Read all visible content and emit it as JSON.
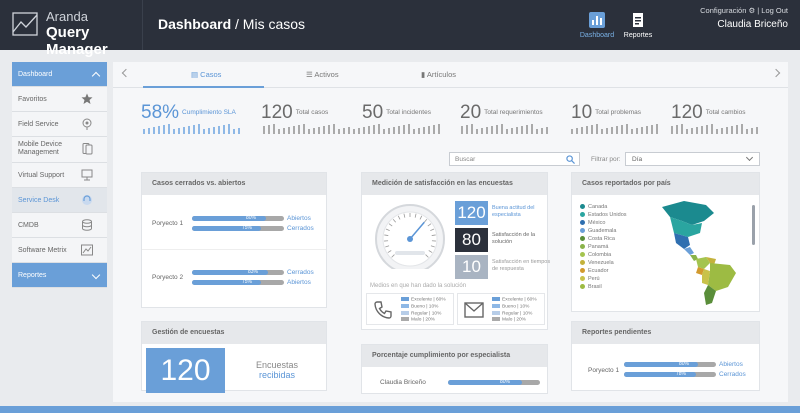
{
  "brand": {
    "line1": "Aranda",
    "line2": "Query Manager"
  },
  "header": {
    "title_bold": "Dashboard",
    "title_rest": " / Mis casos",
    "config": "Configuración ⚙ | Log Out",
    "user": "Claudia Briceño"
  },
  "nav": [
    {
      "label": "Dashboard"
    },
    {
      "label": "Reportes"
    }
  ],
  "sidebar": {
    "items": [
      {
        "label": "Dashboard"
      },
      {
        "label": "Favoritos"
      },
      {
        "label": "Field Service"
      },
      {
        "label": "Mobile Device Management"
      },
      {
        "label": "Virtual Support"
      },
      {
        "label": "Service Desk"
      },
      {
        "label": "CMDB"
      },
      {
        "label": "Software Metrix"
      },
      {
        "label": "Reportes"
      }
    ]
  },
  "tabs": [
    {
      "label": "Casos"
    },
    {
      "label": "Activos"
    },
    {
      "label": "Artículos"
    }
  ],
  "kpis": [
    {
      "num": "58%",
      "label": "Cumplimiento SLA"
    },
    {
      "num": "120",
      "label": "Total casos"
    },
    {
      "num": "50",
      "label": "Total incidentes"
    },
    {
      "num": "20",
      "label": "Total requerimientos"
    },
    {
      "num": "10",
      "label": "Total problemas"
    },
    {
      "num": "120",
      "label": "Total cambios"
    }
  ],
  "search": {
    "placeholder": "Buscar"
  },
  "filter": {
    "label": "Filtrar por:",
    "value": "Día"
  },
  "closed_open": {
    "title": "Casos cerrados vs. abiertos",
    "rows": [
      {
        "label": "Poryecto 1",
        "open": 80,
        "closed": 75,
        "open_txt": "80%",
        "closed_txt": "75%",
        "leg_open": "Abiertos",
        "leg_closed": "Cerrados"
      },
      {
        "label": "Poryecto 2",
        "open": 83,
        "closed": 75,
        "open_txt": "83%",
        "closed_txt": "75%",
        "leg_open": "Cerrados",
        "leg_closed": "Abiertos"
      }
    ]
  },
  "satisfaction": {
    "title": "Medición de satisfacción en las encuestas",
    "gauge_level": 0.65,
    "boxes": [
      {
        "value": "120",
        "label": "Buena actitud del especialista",
        "color": "#6a9fd8"
      },
      {
        "value": "80",
        "label": "Satisfacción de la solución",
        "color": "#2b303b"
      },
      {
        "value": "10",
        "label": "Satisfacción en tiempos de respuesta",
        "color": "#a9b4c2"
      }
    ],
    "medio": "Medios en que han dado la solución",
    "legend": [
      {
        "label": "Excelente",
        "pct": "60%"
      },
      {
        "label": "Bueno",
        "pct": "10%"
      },
      {
        "label": "Regular",
        "pct": "10%"
      },
      {
        "label": "Malo",
        "pct": "20%"
      }
    ]
  },
  "surveys": {
    "title": "Gestión de encuestas",
    "value": "120",
    "text1": "Encuestas",
    "text2": "recibidas"
  },
  "compliance": {
    "title": "Porcentaje cumplimiento por especialista",
    "name": "Claudia Briceño",
    "pct_txt": "80%",
    "pct": 80
  },
  "countries": {
    "title": "Casos reportados por país",
    "items": [
      {
        "name": "Canada",
        "color": "#1b8a8f"
      },
      {
        "name": "Estados Unidos",
        "color": "#2aa5a0"
      },
      {
        "name": "México",
        "color": "#2f6fb0"
      },
      {
        "name": "Guademala",
        "color": "#6a9fd8"
      },
      {
        "name": "Costa Rica",
        "color": "#5a8e3a"
      },
      {
        "name": "Panamá",
        "color": "#8ab34a"
      },
      {
        "name": "Colombia",
        "color": "#a4c44f"
      },
      {
        "name": "Venezuela",
        "color": "#c4b23c"
      },
      {
        "name": "Ecuador",
        "color": "#d29a2e"
      },
      {
        "name": "Perú",
        "color": "#c9c24a"
      },
      {
        "name": "Brasil",
        "color": "#9dbb43"
      }
    ]
  },
  "pending": {
    "title": "Reportes pendientes",
    "label": "Poryecto 1",
    "open": 80,
    "closed": 78,
    "open_txt": "80%",
    "closed_txt": "78%",
    "leg_open": "Abiertos",
    "leg_closed": "Cerrados"
  }
}
